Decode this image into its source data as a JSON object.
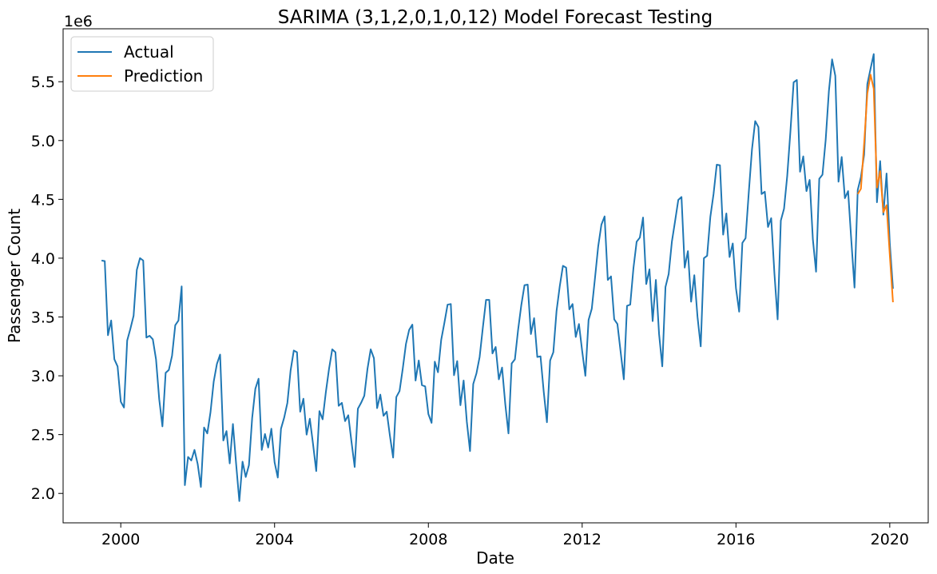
{
  "chart_data": {
    "type": "line",
    "title": "SARIMA (3,1,2,0,1,0,12) Model Forecast Testing",
    "xlabel": "Date",
    "ylabel": "Passenger Count",
    "y_multiplier_label": "1e6",
    "x_start": "1999-07",
    "x_end": "2020-02",
    "xlim": [
      1998.5,
      2021.0
    ],
    "ylim": [
      1750000,
      5950000
    ],
    "x_ticks": [
      2000,
      2004,
      2008,
      2012,
      2016,
      2020
    ],
    "x_tick_labels": [
      "2000",
      "2004",
      "2008",
      "2012",
      "2016",
      "2020"
    ],
    "y_ticks": [
      2000000,
      2500000,
      3000000,
      3500000,
      4000000,
      4500000,
      5000000,
      5500000
    ],
    "y_tick_labels": [
      "2.0",
      "2.5",
      "3.0",
      "3.5",
      "4.0",
      "4.5",
      "5.0",
      "5.5"
    ],
    "legend_position": "top-left",
    "grid": false,
    "series": [
      {
        "name": "Actual",
        "color": "#1f77b4",
        "start": "1999-07",
        "values": [
          3980000,
          3975000,
          3345000,
          3470000,
          3140000,
          3080000,
          2780000,
          2730000,
          3300000,
          3400000,
          3510000,
          3900000,
          4000000,
          3980000,
          3325000,
          3340000,
          3310000,
          3140000,
          2800000,
          2570000,
          3025000,
          3050000,
          3170000,
          3430000,
          3470000,
          3760000,
          2070000,
          2310000,
          2280000,
          2370000,
          2250000,
          2055000,
          2560000,
          2510000,
          2690000,
          2950000,
          3100000,
          3180000,
          2450000,
          2530000,
          2255000,
          2590000,
          2250000,
          1935000,
          2270000,
          2140000,
          2240000,
          2640000,
          2890000,
          2975000,
          2370000,
          2505000,
          2390000,
          2550000,
          2265000,
          2135000,
          2550000,
          2645000,
          2770000,
          3045000,
          3215000,
          3200000,
          2695000,
          2805000,
          2500000,
          2635000,
          2420000,
          2190000,
          2700000,
          2630000,
          2860000,
          3060000,
          3225000,
          3200000,
          2745000,
          2770000,
          2615000,
          2665000,
          2440000,
          2225000,
          2720000,
          2770000,
          2830000,
          3060000,
          3225000,
          3150000,
          2725000,
          2840000,
          2660000,
          2695000,
          2490000,
          2305000,
          2820000,
          2870000,
          3060000,
          3270000,
          3390000,
          3435000,
          2960000,
          3130000,
          2920000,
          2910000,
          2675000,
          2600000,
          3120000,
          3030000,
          3305000,
          3450000,
          3605000,
          3610000,
          3005000,
          3125000,
          2750000,
          2960000,
          2610000,
          2360000,
          2930000,
          3020000,
          3160000,
          3410000,
          3645000,
          3645000,
          3190000,
          3245000,
          2970000,
          3070000,
          2760000,
          2510000,
          3105000,
          3140000,
          3390000,
          3600000,
          3770000,
          3775000,
          3355000,
          3490000,
          3160000,
          3165000,
          2865000,
          2605000,
          3130000,
          3200000,
          3550000,
          3760000,
          3935000,
          3920000,
          3565000,
          3610000,
          3330000,
          3440000,
          3210000,
          3000000,
          3475000,
          3570000,
          3830000,
          4100000,
          4285000,
          4355000,
          3815000,
          3845000,
          3480000,
          3440000,
          3205000,
          2970000,
          3595000,
          3605000,
          3915000,
          4140000,
          4175000,
          4345000,
          3780000,
          3905000,
          3465000,
          3815000,
          3355000,
          3080000,
          3755000,
          3865000,
          4140000,
          4315000,
          4495000,
          4520000,
          3920000,
          4060000,
          3630000,
          3855000,
          3500000,
          3250000,
          4000000,
          4020000,
          4350000,
          4545000,
          4795000,
          4790000,
          4200000,
          4380000,
          4010000,
          4125000,
          3745000,
          3545000,
          4130000,
          4170000,
          4560000,
          4925000,
          5165000,
          5115000,
          4545000,
          4565000,
          4265000,
          4340000,
          3870000,
          3480000,
          4320000,
          4420000,
          4700000,
          5080000,
          5495000,
          5515000,
          4735000,
          4865000,
          4570000,
          4665000,
          4160000,
          3885000,
          4675000,
          4710000,
          5005000,
          5420000,
          5690000,
          5550000,
          4650000,
          4860000,
          4510000,
          4570000,
          4150000,
          3750000,
          4580000,
          4690000,
          4880000,
          5480000,
          5610000,
          5735000,
          4475000,
          4825000,
          4370000,
          4720000,
          4130000,
          3740000
        ]
      },
      {
        "name": "Prediction",
        "color": "#ff7f0e",
        "start": "2019-03",
        "values": [
          4545000,
          4590000,
          4975000,
          5400000,
          5560000,
          5440000,
          4600000,
          4740000,
          4390000,
          4450000,
          4030000,
          3625000
        ]
      }
    ]
  }
}
